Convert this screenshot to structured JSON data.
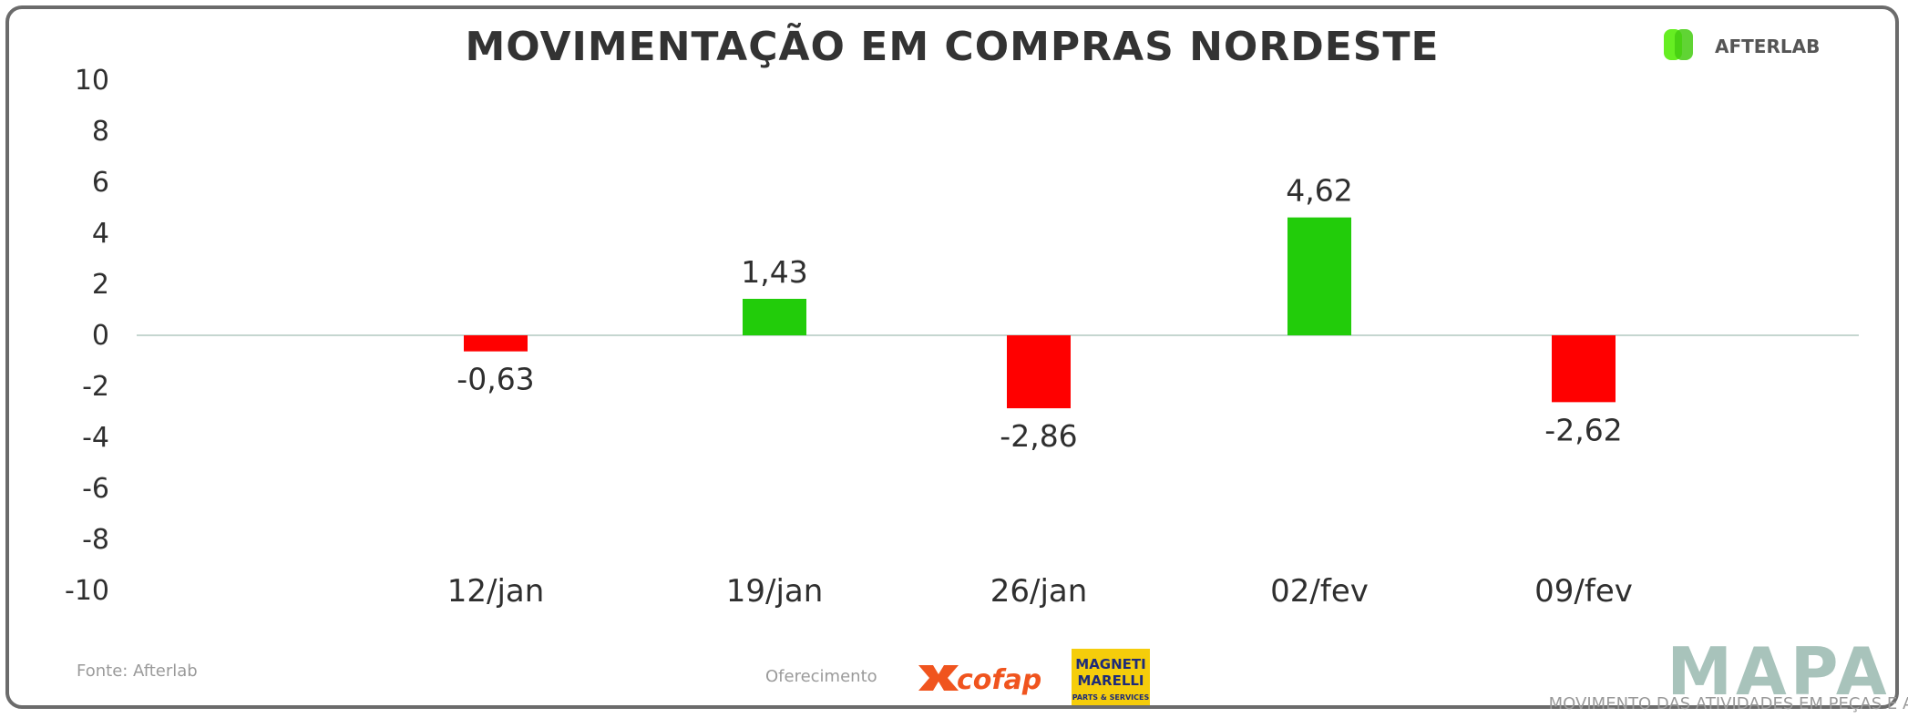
{
  "chart_data": {
    "type": "bar",
    "title": "MOVIMENTAÇÃO EM COMPRAS NORDESTE",
    "categories": [
      "12/jan",
      "19/jan",
      "26/jan",
      "02/fev",
      "09/fev"
    ],
    "values": [
      -0.63,
      1.43,
      -2.86,
      4.62,
      -2.62
    ],
    "data_labels": [
      "-0,63",
      "1,43",
      "-2,86",
      "4,62",
      "-2,62"
    ],
    "ylim": [
      -10,
      10
    ],
    "yticks": [
      10,
      8,
      6,
      4,
      2,
      0,
      -2,
      -4,
      -6,
      -8,
      -10
    ],
    "grid": false,
    "colors": {
      "positive": "#22cc0a",
      "negative": "#ff0000",
      "zero_line": "#c5d6d0"
    }
  },
  "brand": {
    "name": "AFTERLAB",
    "logo_color": "#66ee22"
  },
  "footer": {
    "source": "Fonte: Afterlab",
    "sponsors_label": "Oferecimento",
    "cofap": "cofap",
    "magneti_line1": "MAGNETI",
    "magneti_line2": "MARELLI",
    "magneti_line3": "PARTS & SERVICES",
    "mapa": "MAPA",
    "mapa_tagline": "MOVIMENTO DAS ATIVIDADES EM PEÇAS E ACESSÓRIOS"
  }
}
